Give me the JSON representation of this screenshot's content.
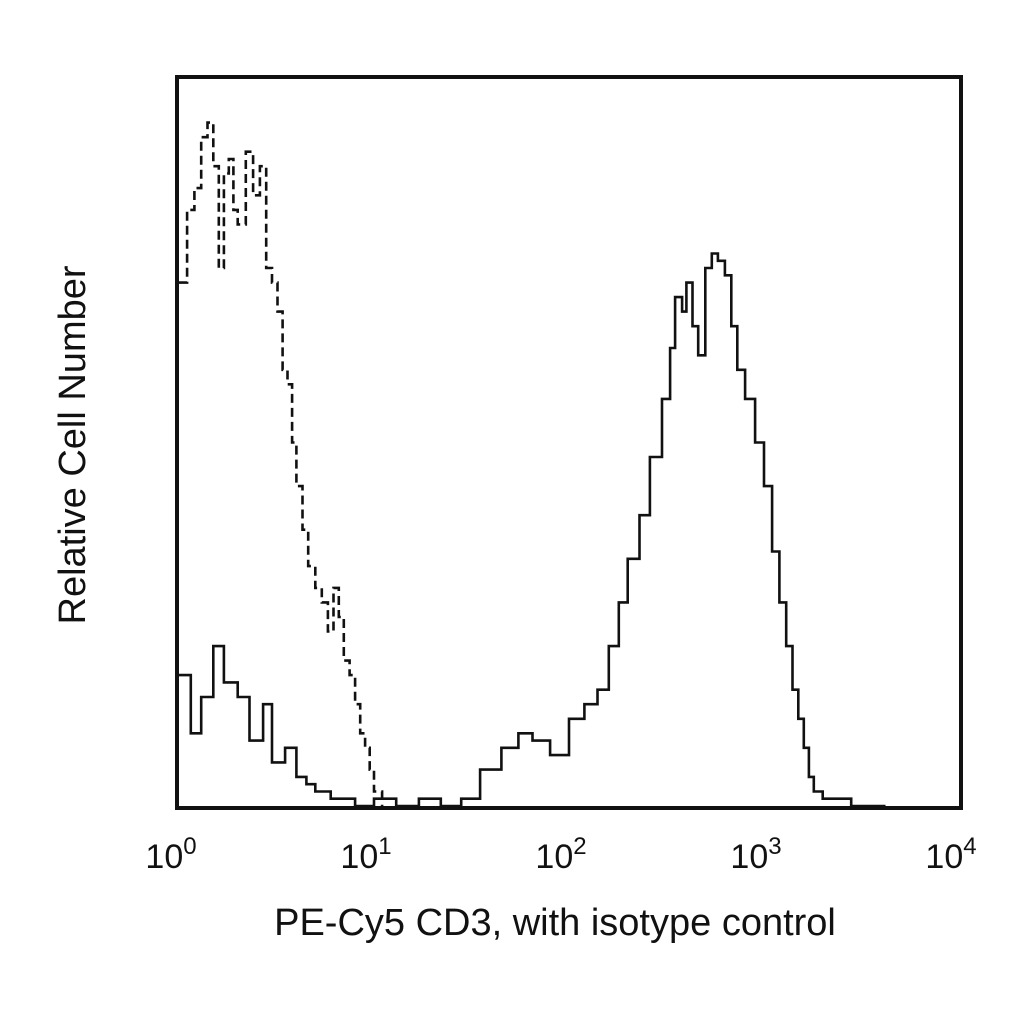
{
  "chart_data": {
    "type": "line",
    "title": "",
    "xlabel": "PE-Cy5 CD3, with isotype control",
    "ylabel": "Relative Cell Number",
    "x_scale": "log",
    "xlim": [
      1,
      10000
    ],
    "ylim": [
      0,
      100
    ],
    "grid": false,
    "y_tick_labels_shown": false,
    "x_ticks": [
      {
        "base": "10",
        "exp": "0",
        "value": 1
      },
      {
        "base": "10",
        "exp": "1",
        "value": 10
      },
      {
        "base": "10",
        "exp": "2",
        "value": 100
      },
      {
        "base": "10",
        "exp": "3",
        "value": 1000
      },
      {
        "base": "10",
        "exp": "4",
        "value": 10000
      }
    ],
    "series": [
      {
        "style": "dashed",
        "color": "#111111",
        "x": [
          1.0,
          1.1,
          1.2,
          1.3,
          1.4,
          1.5,
          1.6,
          1.7,
          1.8,
          1.9,
          2.0,
          2.2,
          2.4,
          2.6,
          2.8,
          3.0,
          3.2,
          3.4,
          3.6,
          3.8,
          4.0,
          4.3,
          4.6,
          5.0,
          5.4,
          5.8,
          6.2,
          6.6,
          7.0,
          7.5,
          8.0,
          8.5,
          9.0,
          9.5,
          10.0,
          11.0
        ],
        "y": [
          72,
          82,
          85,
          92,
          94,
          88,
          74,
          87,
          89,
          82,
          80,
          90,
          84,
          88,
          74,
          72,
          68,
          60,
          58,
          50,
          44,
          38,
          33,
          30,
          28,
          24,
          30,
          26,
          20,
          18,
          14,
          10,
          8,
          5,
          2,
          0
        ]
      },
      {
        "style": "solid",
        "color": "#111111",
        "x": [
          1.0,
          1.15,
          1.3,
          1.5,
          1.7,
          2.0,
          2.3,
          2.7,
          3.0,
          3.5,
          4.0,
          4.5,
          5.0,
          6.0,
          7.0,
          8.0,
          10,
          13,
          17,
          22,
          28,
          35,
          45,
          55,
          65,
          80,
          100,
          120,
          140,
          160,
          180,
          200,
          230,
          260,
          300,
          330,
          350,
          380,
          400,
          430,
          460,
          500,
          540,
          580,
          630,
          680,
          730,
          800,
          900,
          1000,
          1100,
          1200,
          1300,
          1400,
          1500,
          1600,
          1700,
          1800,
          2000,
          2300,
          2800,
          3500,
          4200
        ],
        "y": [
          18,
          10,
          15,
          22,
          17,
          15,
          9,
          14,
          6,
          8,
          4,
          3,
          2,
          1,
          1,
          0,
          1,
          0,
          1,
          0,
          1,
          5,
          8,
          10,
          9,
          7,
          12,
          14,
          16,
          22,
          28,
          34,
          40,
          48,
          56,
          63,
          70,
          68,
          72,
          66,
          62,
          74,
          76,
          75,
          73,
          66,
          60,
          56,
          50,
          44,
          35,
          28,
          22,
          16,
          12,
          8,
          4,
          2,
          1,
          1,
          0,
          0,
          0
        ]
      }
    ]
  }
}
